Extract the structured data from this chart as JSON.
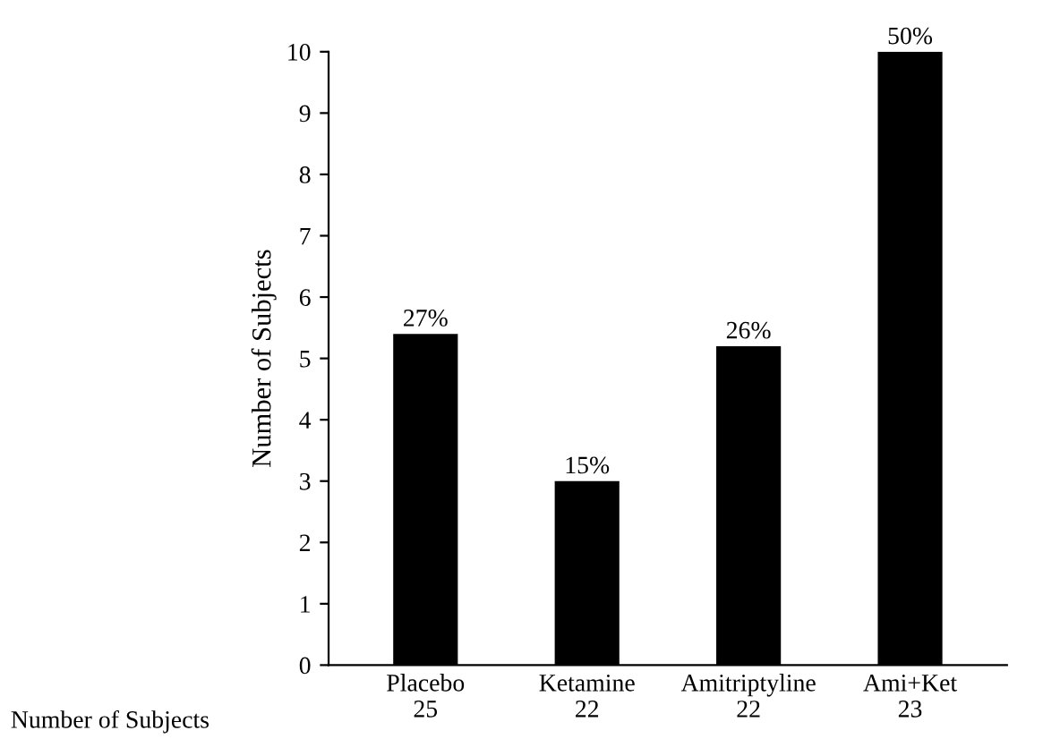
{
  "chart_data": {
    "type": "bar",
    "ylabel": "Number of Subjects",
    "categories": [
      "Placebo\n25",
      "Ketamine\n22",
      "Amitriptyline\n22",
      "Ami+Ket\n23"
    ],
    "values": [
      5.4,
      3,
      5.2,
      10
    ],
    "color": "#000000",
    "annotations": [
      {
        "text": "27%",
        "x": "Placebo\n25",
        "y": 5.4
      },
      {
        "text": "15%",
        "x": "Ketamine\n22",
        "y": 3
      },
      {
        "text": "26%",
        "x": "Amitriptyline\n22",
        "y": 5.2
      },
      {
        "text": "50%",
        "x": "Ami+Ket\n23",
        "y": 10
      },
      "Number of Subjects"
    ],
    "ylim": [
      0,
      10
    ],
    "yticks": [
      0,
      1,
      2,
      3,
      4,
      5,
      6,
      7,
      8,
      9,
      10
    ],
    "grid": false,
    "legend": false
  }
}
